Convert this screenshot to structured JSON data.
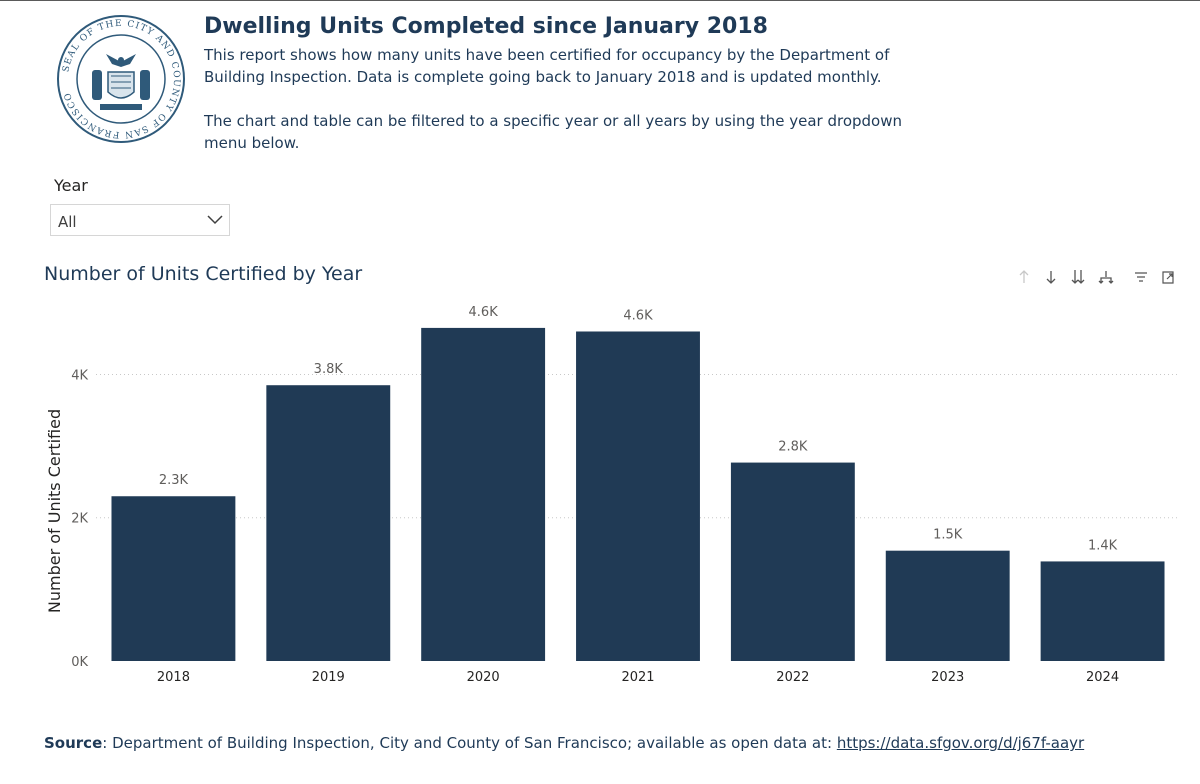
{
  "header": {
    "title": "Dwelling Units Completed since January 2018",
    "description_1": "This report shows how many units have been certified for occupancy by the Department of Building Inspection. Data is complete going back to January 2018 and is updated monthly.",
    "description_2": "The chart and table can be filtered to a specific year or all years by using the year dropdown menu below.",
    "seal_text": "SEAL OF THE CITY AND COUNTY OF SAN FRANCISCO"
  },
  "filter": {
    "label": "Year",
    "selected": "All"
  },
  "chart": {
    "title": "Number of Units Certified by Year",
    "toolbar_icons": [
      "arrow-up-icon",
      "arrow-down-icon",
      "double-arrow-down-icon",
      "hierarchy-expand-icon",
      "filter-icon",
      "focus-mode-icon"
    ]
  },
  "chart_data": {
    "type": "bar",
    "title": "Number of Units Certified by Year",
    "xlabel": "",
    "ylabel": "Number of Units Certified",
    "categories": [
      "2018",
      "2019",
      "2020",
      "2021",
      "2022",
      "2023",
      "2024"
    ],
    "values": [
      2300,
      3850,
      4650,
      4600,
      2770,
      1540,
      1390
    ],
    "data_labels": [
      "2.3K",
      "3.8K",
      "4.6K",
      "4.6K",
      "2.8K",
      "1.5K",
      "1.4K"
    ],
    "ylim": [
      0,
      4900
    ],
    "yticks": [
      0,
      2000,
      4000
    ],
    "ytick_labels": [
      "0K",
      "2K",
      "4K"
    ],
    "grid": true,
    "bar_color": "#203a55"
  },
  "footer": {
    "source_label": "Source",
    "source_text": ": Department of Building Inspection, City and County of San Francisco; available as open data at: ",
    "source_link": "https://data.sfgov.org/d/j67f-aayr"
  }
}
